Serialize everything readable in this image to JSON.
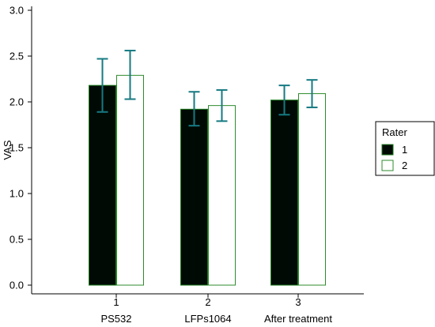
{
  "colors": {
    "series1_fill": "#000a05",
    "series1_stroke": "#1a7a1a",
    "series2_fill": "#ffffff",
    "series2_stroke": "#2e8b2e",
    "error_bar": "#167a82",
    "axis": "#000000"
  },
  "chart_data": {
    "type": "bar",
    "ylabel": "VAS",
    "xlabel": "",
    "ylim": [
      0,
      3.0
    ],
    "yticks": [
      "0.0",
      "0.5",
      "1.0",
      "1.5",
      "2.0",
      "2.5",
      "3.0"
    ],
    "ytick_values": [
      0,
      0.5,
      1.0,
      1.5,
      2.0,
      2.5,
      3.0
    ],
    "categories": [
      "1",
      "2",
      "3"
    ],
    "category_names": [
      "PS532",
      "LFPs1064",
      "After treatment"
    ],
    "legend": {
      "title": "Rater",
      "position": "right"
    },
    "grid": false,
    "series": [
      {
        "name": "1",
        "values": [
          2.18,
          1.92,
          2.02
        ],
        "error_low": [
          1.89,
          1.74,
          1.86
        ],
        "error_high": [
          2.47,
          2.11,
          2.18
        ]
      },
      {
        "name": "2",
        "values": [
          2.29,
          1.96,
          2.09
        ],
        "error_low": [
          2.03,
          1.79,
          1.94
        ],
        "error_high": [
          2.56,
          2.13,
          2.24
        ]
      }
    ]
  }
}
